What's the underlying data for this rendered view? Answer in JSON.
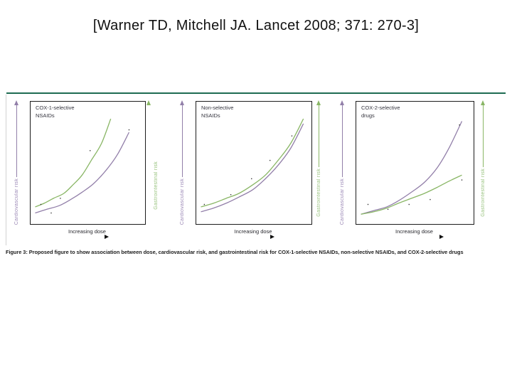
{
  "slide": {
    "title": "[Warner TD, Mitchell JA. Lancet 2008; 371: 270-3]"
  },
  "figure": {
    "caption": "Figure 3: Proposed figure to show association between dose, cardiovascular risk, and gastrointestinal risk for COX-1-selective NSAIDs, non-selective NSAIDs, and COX-2-selective drugs"
  },
  "colors": {
    "cardiovascular": "#927fa9",
    "gastrointestinal": "#89b665",
    "cardio_text": "#9a87b5",
    "gastro_text": "#97c27c",
    "rule": "#1e6b52",
    "box_border": "#1c1c1c",
    "ink": "#1f1f1f",
    "speck": "#2b2b2b"
  },
  "panels": [
    {
      "label_line1": "COX-1-selective",
      "label_line2": "NSAIDs",
      "y_left_label": "Cardiovascular risk",
      "y_right_label": "Gastrointestinal risk",
      "x_label": "Increasing dose"
    },
    {
      "label_line1": "Non-selective",
      "label_line2": "NSAIDs",
      "y_left_label": "Cardiovascular risk",
      "y_right_label": "Gastrointestinal risk",
      "x_label": "Increasing dose"
    },
    {
      "label_line1": "COX-2-selective",
      "label_line2": "drugs",
      "y_left_label": "Cardiovascular risk",
      "y_right_label": "Gastrointestinal risk",
      "x_label": "Increasing dose"
    }
  ],
  "chart_data": [
    {
      "type": "line",
      "title": "COX-1-selective NSAIDs",
      "xlabel": "Increasing dose",
      "ylabel_left": "Cardiovascular risk",
      "ylabel_right": "Gastrointestinal risk",
      "axes_note": "conceptual unscaled axes; points are [dose 0-100, risk 0-100]",
      "legend_position": "none",
      "grid": false,
      "series": [
        {
          "name": "Gastrointestinal risk",
          "color_key": "gastrointestinal",
          "points": [
            [
              4,
              14
            ],
            [
              12,
              17
            ],
            [
              20,
              21
            ],
            [
              29,
              25
            ],
            [
              37,
              32
            ],
            [
              45,
              40
            ],
            [
              53,
              52
            ],
            [
              62,
              66
            ],
            [
              70,
              86
            ]
          ]
        },
        {
          "name": "Cardiovascular risk",
          "color_key": "cardiovascular",
          "points": [
            [
              4,
              9
            ],
            [
              14,
              12
            ],
            [
              25,
              15
            ],
            [
              35,
              20
            ],
            [
              45,
              26
            ],
            [
              55,
              33
            ],
            [
              66,
              44
            ],
            [
              76,
              57
            ],
            [
              86,
              75
            ]
          ]
        }
      ],
      "specks": [
        [
          9,
          16
        ],
        [
          18,
          9
        ],
        [
          26,
          21
        ],
        [
          52,
          60
        ],
        [
          86,
          77
        ]
      ]
    },
    {
      "type": "line",
      "title": "Non-selective NSAIDs",
      "xlabel": "Increasing dose",
      "ylabel_left": "Cardiovascular risk",
      "ylabel_right": "Gastrointestinal risk",
      "axes_note": "conceptual unscaled axes; points are [dose 0-100, risk 0-100]",
      "legend_position": "none",
      "grid": false,
      "series": [
        {
          "name": "Gastrointestinal risk",
          "color_key": "gastrointestinal",
          "points": [
            [
              4,
              14
            ],
            [
              15,
              17
            ],
            [
              26,
              21
            ],
            [
              37,
              25
            ],
            [
              49,
              32
            ],
            [
              60,
              40
            ],
            [
              71,
              52
            ],
            [
              82,
              66
            ],
            [
              93,
              86
            ]
          ]
        },
        {
          "name": "Cardiovascular risk",
          "color_key": "cardiovascular",
          "points": [
            [
              4,
              10
            ],
            [
              15,
              13
            ],
            [
              26,
              17
            ],
            [
              37,
              22
            ],
            [
              49,
              28
            ],
            [
              60,
              37
            ],
            [
              71,
              48
            ],
            [
              82,
              62
            ],
            [
              93,
              82
            ]
          ]
        }
      ],
      "specks": [
        [
          7,
          16
        ],
        [
          30,
          24
        ],
        [
          48,
          37
        ],
        [
          64,
          52
        ],
        [
          83,
          72
        ]
      ]
    },
    {
      "type": "line",
      "title": "COX-2-selective drugs",
      "xlabel": "Increasing dose",
      "ylabel_left": "Cardiovascular risk",
      "ylabel_right": "Gastrointestinal risk",
      "axes_note": "conceptual unscaled axes; points are [dose 0-100, risk 0-100]",
      "legend_position": "none",
      "grid": false,
      "series": [
        {
          "name": "Cardiovascular risk",
          "color_key": "cardiovascular",
          "points": [
            [
              4,
              8
            ],
            [
              15,
              11
            ],
            [
              26,
              14
            ],
            [
              36,
              19
            ],
            [
              47,
              26
            ],
            [
              58,
              34
            ],
            [
              69,
              46
            ],
            [
              79,
              62
            ],
            [
              90,
              84
            ]
          ]
        },
        {
          "name": "Gastrointestinal risk",
          "color_key": "gastrointestinal",
          "points": [
            [
              4,
              8
            ],
            [
              15,
              10
            ],
            [
              26,
              13
            ],
            [
              36,
              17
            ],
            [
              47,
              21
            ],
            [
              58,
              25
            ],
            [
              69,
              30
            ],
            [
              79,
              35
            ],
            [
              90,
              40
            ]
          ]
        }
      ],
      "specks": [
        [
          10,
          16
        ],
        [
          27,
          12
        ],
        [
          45,
          16
        ],
        [
          63,
          20
        ],
        [
          90,
          36
        ],
        [
          88,
          81
        ]
      ]
    }
  ]
}
